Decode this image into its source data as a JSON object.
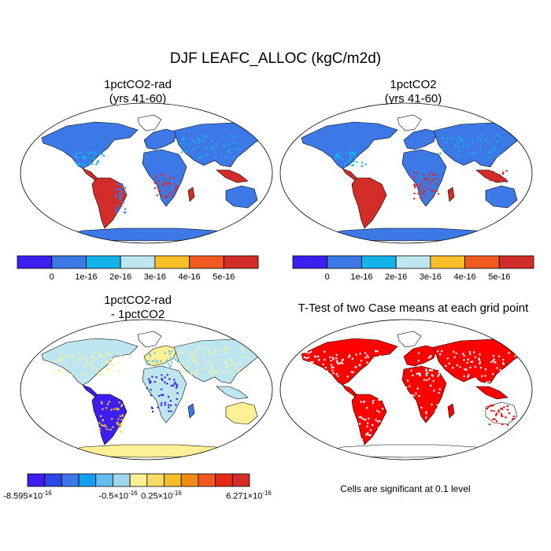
{
  "title": "DJF LEAFC_ALLOC (kgC/m2d)",
  "panels": [
    {
      "title_line1": "1pctCO2-rad",
      "title_line2": "(yrs 41-60)",
      "style": "abs"
    },
    {
      "title_line1": "1pctCO2",
      "title_line2": "(yrs 41-60)",
      "style": "abs"
    },
    {
      "title_line1": "1pctCO2-rad",
      "title_line2": "- 1pctCO2",
      "style": "diff"
    },
    {
      "title_line1": "T-Test of two Case means at each grid point",
      "title_line2": "",
      "style": "ttest"
    }
  ],
  "colorbar_abs": {
    "colors": [
      "#3c1ef0",
      "#3c78e6",
      "#14b4eb",
      "#bee6f0",
      "#fabe28",
      "#f05a1e",
      "#d22d28"
    ],
    "labels": [
      "0",
      "1e-16",
      "2e-16",
      "3e-16",
      "4e-16",
      "5e-16"
    ]
  },
  "colorbar_diff": {
    "colors": [
      "#3c1ef0",
      "#2d46e6",
      "#3c78e6",
      "#14a0f0",
      "#64beeb",
      "#a0d7ee",
      "#fff096",
      "#fadc64",
      "#f5be28",
      "#f08c14",
      "#f05a1e",
      "#e62814",
      "#d22d28"
    ],
    "labels": [
      {
        "mant": "-8.595×10",
        "exp": "-16"
      },
      {
        "mant": "-0.5×10",
        "exp": "-16"
      },
      {
        "mant": "0.25×10",
        "exp": "-16"
      },
      {
        "mant": "6.271×10",
        "exp": "-16"
      }
    ]
  },
  "note": "Cells are significant at 0.1 level"
}
